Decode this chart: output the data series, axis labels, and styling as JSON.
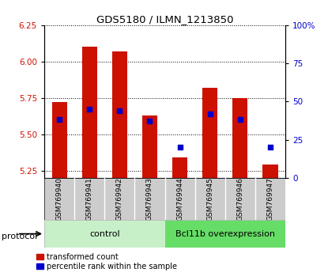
{
  "title": "GDS5180 / ILMN_1213850",
  "samples": [
    "GSM769940",
    "GSM769941",
    "GSM769942",
    "GSM769943",
    "GSM769944",
    "GSM769945",
    "GSM769946",
    "GSM769947"
  ],
  "transformed_count": [
    5.72,
    6.1,
    6.07,
    5.63,
    5.34,
    5.82,
    5.75,
    5.29
  ],
  "percentile_rank": [
    38,
    45,
    44,
    37,
    20,
    42,
    38,
    20
  ],
  "ylim_left": [
    5.2,
    6.25
  ],
  "ylim_right": [
    0,
    100
  ],
  "yticks_left": [
    5.25,
    5.5,
    5.75,
    6.0,
    6.25
  ],
  "ytick_labels_right": [
    "0",
    "25",
    "50",
    "75",
    "100%"
  ],
  "yticks_right": [
    0,
    25,
    50,
    75,
    100
  ],
  "bar_color": "#cc1100",
  "dot_color": "#0000cc",
  "bar_width": 0.5,
  "control_label": "control",
  "overexp_label": "Bcl11b overexpression",
  "protocol_label": "protocol",
  "legend_red": "transformed count",
  "legend_blue": "percentile rank within the sample",
  "control_color": "#c8f0c8",
  "overexp_color": "#66dd66",
  "grid_color": "black",
  "base_value": 5.2
}
